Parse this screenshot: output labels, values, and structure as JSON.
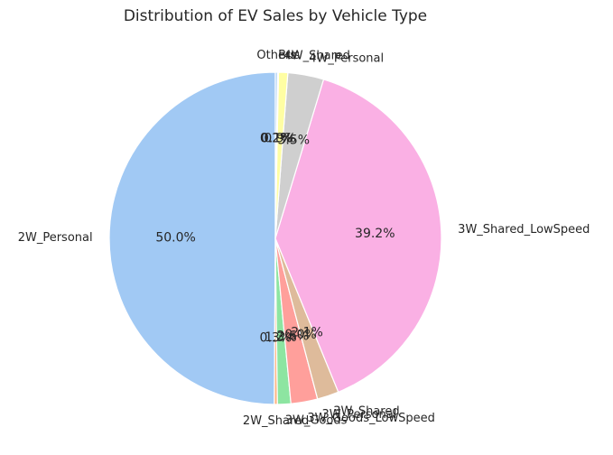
{
  "chart_data": {
    "type": "pie",
    "title": "Distribution of EV Sales by Vehicle Type",
    "start_angle_deg": 90,
    "direction": "counterclockwise",
    "slices": [
      {
        "label": "2W_Personal",
        "value": 50.0,
        "pct_label": "50.0%",
        "color": "#a1c9f4"
      },
      {
        "label": "2W_Shared",
        "value": 0.3,
        "pct_label": "0.3%",
        "color": "#ffb482"
      },
      {
        "label": "3W_Goods",
        "value": 1.3,
        "pct_label": "1.3%",
        "color": "#8de5a1"
      },
      {
        "label": "3W_Goods_LowSpeed",
        "value": 2.6,
        "pct_label": "2.6%",
        "color": "#ff9f9b"
      },
      {
        "label": "3W_Personal",
        "value": 0.0,
        "pct_label": "0.0%",
        "color": "#d0bbff"
      },
      {
        "label": "3W_Shared",
        "value": 2.1,
        "pct_label": "2.1%",
        "color": "#debb9b"
      },
      {
        "label": "3W_Shared_LowSpeed",
        "value": 39.2,
        "pct_label": "39.2%",
        "color": "#fab0e4"
      },
      {
        "label": "4W_Personal",
        "value": 3.5,
        "pct_label": "3.5%",
        "color": "#cfcfcf"
      },
      {
        "label": "4W_Shared",
        "value": 0.9,
        "pct_label": "0.9%",
        "color": "#fffea3"
      },
      {
        "label": "Bus",
        "value": 0.1,
        "pct_label": "0.1%",
        "color": "#b9f2f0"
      },
      {
        "label": "Others",
        "value": 0.2,
        "pct_label": "0.2%",
        "color": "#a1c9f4"
      }
    ]
  }
}
